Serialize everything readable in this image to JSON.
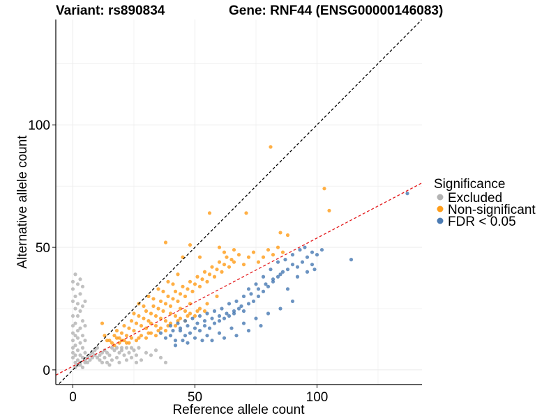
{
  "chart_data": {
    "type": "scatter",
    "title_left": "Variant: rs890834",
    "title_right": "Gene: RNF44 (ENSG00000146083)",
    "xlabel": "Reference allele count",
    "ylabel": "Alternative allele count",
    "xlim": [
      -7,
      143
    ],
    "ylim": [
      -6,
      143
    ],
    "xticks": [
      0,
      50,
      100
    ],
    "yticks": [
      0,
      50,
      100
    ],
    "xtick_labels": [
      "0",
      "50",
      "100"
    ],
    "ytick_labels": [
      "0",
      "50",
      "100"
    ],
    "grid": true,
    "legend_title": "Significance",
    "legend_position": "right",
    "reference_line": {
      "slope": 1,
      "intercept": 0,
      "style": "dashed",
      "color": "#000000"
    },
    "fit_line": {
      "slope": 0.523,
      "intercept": 1.5,
      "style": "dashed",
      "color": "#e41a1c"
    },
    "series": [
      {
        "name": "Excluded",
        "color": "#b3b3b3",
        "points": [
          [
            0,
            5
          ],
          [
            0,
            7
          ],
          [
            0,
            9
          ],
          [
            0,
            12
          ],
          [
            0,
            15
          ],
          [
            0,
            18
          ],
          [
            0,
            22
          ],
          [
            0,
            28
          ],
          [
            0,
            33
          ],
          [
            0,
            36
          ],
          [
            1,
            3
          ],
          [
            1,
            6
          ],
          [
            1,
            10
          ],
          [
            1,
            14
          ],
          [
            1,
            19
          ],
          [
            1,
            25
          ],
          [
            1,
            30
          ],
          [
            1,
            39
          ],
          [
            2,
            4
          ],
          [
            2,
            8
          ],
          [
            2,
            13
          ],
          [
            2,
            16
          ],
          [
            2,
            22
          ],
          [
            2,
            27
          ],
          [
            2,
            35
          ],
          [
            3,
            2
          ],
          [
            3,
            6
          ],
          [
            3,
            11
          ],
          [
            3,
            17
          ],
          [
            3,
            24
          ],
          [
            3,
            31
          ],
          [
            3,
            37
          ],
          [
            4,
            5
          ],
          [
            4,
            9
          ],
          [
            4,
            14
          ],
          [
            4,
            20
          ],
          [
            4,
            26
          ],
          [
            4,
            34
          ],
          [
            5,
            3
          ],
          [
            5,
            7
          ],
          [
            5,
            12
          ],
          [
            5,
            18
          ],
          [
            5,
            28
          ],
          [
            1,
            1
          ],
          [
            2,
            2
          ],
          [
            3,
            3
          ],
          [
            4,
            1
          ],
          [
            5,
            4
          ],
          [
            6,
            5
          ],
          [
            7,
            6
          ],
          [
            8,
            7
          ],
          [
            6,
            3
          ],
          [
            7,
            4
          ],
          [
            8,
            5
          ],
          [
            9,
            6
          ],
          [
            10,
            5
          ],
          [
            11,
            6
          ],
          [
            12,
            7
          ],
          [
            9,
            8
          ],
          [
            10,
            9
          ],
          [
            11,
            4
          ],
          [
            12,
            3
          ],
          [
            13,
            8
          ],
          [
            14,
            7
          ],
          [
            15,
            6
          ],
          [
            16,
            9
          ],
          [
            17,
            8
          ],
          [
            18,
            5
          ],
          [
            19,
            7
          ],
          [
            20,
            8
          ],
          [
            21,
            6
          ],
          [
            22,
            9
          ],
          [
            23,
            7
          ],
          [
            24,
            5
          ],
          [
            25,
            8
          ],
          [
            26,
            6
          ],
          [
            27,
            9
          ],
          [
            28,
            4
          ],
          [
            30,
            7
          ],
          [
            32,
            6
          ],
          [
            34,
            8
          ],
          [
            36,
            5
          ],
          [
            38,
            3
          ],
          [
            18,
            9
          ],
          [
            20,
            9
          ],
          [
            24,
            9
          ],
          [
            14,
            3
          ],
          [
            16,
            4
          ],
          [
            13,
            5
          ],
          [
            15,
            2
          ],
          [
            19,
            3
          ],
          [
            22,
            4
          ],
          [
            26,
            3
          ]
        ]
      },
      {
        "name": "Non-significant",
        "color": "#ff9e1b",
        "points": [
          [
            12,
            19
          ],
          [
            15,
            12
          ],
          [
            17,
            14
          ],
          [
            18,
            16
          ],
          [
            19,
            13
          ],
          [
            20,
            15
          ],
          [
            21,
            18
          ],
          [
            22,
            14
          ],
          [
            23,
            17
          ],
          [
            24,
            20
          ],
          [
            25,
            16
          ],
          [
            26,
            19
          ],
          [
            27,
            22
          ],
          [
            28,
            18
          ],
          [
            29,
            21
          ],
          [
            30,
            24
          ],
          [
            31,
            20
          ],
          [
            32,
            23
          ],
          [
            33,
            26
          ],
          [
            34,
            22
          ],
          [
            35,
            25
          ],
          [
            36,
            28
          ],
          [
            37,
            24
          ],
          [
            38,
            27
          ],
          [
            39,
            30
          ],
          [
            40,
            26
          ],
          [
            41,
            29
          ],
          [
            42,
            32
          ],
          [
            43,
            28
          ],
          [
            44,
            31
          ],
          [
            45,
            34
          ],
          [
            46,
            30
          ],
          [
            47,
            33
          ],
          [
            48,
            36
          ],
          [
            49,
            32
          ],
          [
            50,
            35
          ],
          [
            51,
            38
          ],
          [
            52,
            34
          ],
          [
            53,
            37
          ],
          [
            54,
            40
          ],
          [
            55,
            36
          ],
          [
            56,
            39
          ],
          [
            57,
            42
          ],
          [
            58,
            38
          ],
          [
            59,
            41
          ],
          [
            60,
            44
          ],
          [
            61,
            40
          ],
          [
            62,
            43
          ],
          [
            63,
            46
          ],
          [
            64,
            42
          ],
          [
            65,
            45
          ],
          [
            66,
            44
          ],
          [
            68,
            47
          ],
          [
            70,
            43
          ],
          [
            72,
            46
          ],
          [
            74,
            48
          ],
          [
            76,
            44
          ],
          [
            78,
            46
          ],
          [
            80,
            49
          ],
          [
            82,
            47
          ],
          [
            84,
            50
          ],
          [
            86,
            48
          ],
          [
            20,
            12
          ],
          [
            22,
            11
          ],
          [
            24,
            13
          ],
          [
            26,
            12
          ],
          [
            28,
            14
          ],
          [
            30,
            13
          ],
          [
            32,
            15
          ],
          [
            34,
            14
          ],
          [
            36,
            17
          ],
          [
            38,
            16
          ],
          [
            40,
            19
          ],
          [
            42,
            18
          ],
          [
            44,
            21
          ],
          [
            46,
            20
          ],
          [
            48,
            23
          ],
          [
            50,
            22
          ],
          [
            52,
            25
          ],
          [
            54,
            24
          ],
          [
            25,
            23
          ],
          [
            27,
            27
          ],
          [
            29,
            26
          ],
          [
            31,
            30
          ],
          [
            33,
            29
          ],
          [
            35,
            33
          ],
          [
            37,
            32
          ],
          [
            39,
            36
          ],
          [
            41,
            35
          ],
          [
            43,
            39
          ],
          [
            30,
            17
          ],
          [
            32,
            19
          ],
          [
            34,
            18
          ],
          [
            36,
            21
          ],
          [
            38,
            20
          ],
          [
            40,
            23
          ],
          [
            42,
            22
          ],
          [
            44,
            25
          ],
          [
            46,
            24
          ],
          [
            48,
            27
          ],
          [
            23,
            11
          ],
          [
            27,
            13
          ],
          [
            31,
            15
          ],
          [
            35,
            16
          ],
          [
            39,
            18
          ],
          [
            43,
            20
          ],
          [
            47,
            22
          ],
          [
            51,
            24
          ],
          [
            55,
            27
          ],
          [
            59,
            30
          ],
          [
            17,
            10
          ],
          [
            19,
            11
          ],
          [
            21,
            12
          ],
          [
            18,
            13
          ],
          [
            16,
            11
          ],
          [
            14,
            12
          ],
          [
            13,
            14
          ],
          [
            38,
            52
          ],
          [
            48,
            51
          ],
          [
            56,
            64
          ],
          [
            71,
            64
          ],
          [
            81,
            91
          ],
          [
            85,
            56
          ],
          [
            88,
            55
          ],
          [
            103,
            74
          ],
          [
            105,
            65
          ],
          [
            60,
            50
          ],
          [
            62,
            48
          ],
          [
            45,
            46
          ],
          [
            52,
            46
          ],
          [
            66,
            49
          ]
        ]
      },
      {
        "name": "FDR < 0.05",
        "color": "#4b7bb3",
        "points": [
          [
            36,
            15
          ],
          [
            38,
            13
          ],
          [
            40,
            14
          ],
          [
            42,
            12
          ],
          [
            44,
            16
          ],
          [
            46,
            14
          ],
          [
            48,
            15
          ],
          [
            50,
            17
          ],
          [
            52,
            16
          ],
          [
            54,
            18
          ],
          [
            56,
            17
          ],
          [
            58,
            19
          ],
          [
            60,
            20
          ],
          [
            62,
            21
          ],
          [
            64,
            22
          ],
          [
            66,
            23
          ],
          [
            68,
            25
          ],
          [
            70,
            24
          ],
          [
            72,
            27
          ],
          [
            74,
            28
          ],
          [
            76,
            30
          ],
          [
            78,
            32
          ],
          [
            80,
            34
          ],
          [
            82,
            36
          ],
          [
            84,
            38
          ],
          [
            86,
            40
          ],
          [
            88,
            41
          ],
          [
            90,
            43
          ],
          [
            92,
            42
          ],
          [
            94,
            44
          ],
          [
            96,
            46
          ],
          [
            98,
            48
          ],
          [
            100,
            47
          ],
          [
            102,
            49
          ],
          [
            40,
            18
          ],
          [
            43,
            19
          ],
          [
            46,
            20
          ],
          [
            49,
            21
          ],
          [
            52,
            22
          ],
          [
            55,
            23
          ],
          [
            58,
            24
          ],
          [
            61,
            25
          ],
          [
            64,
            27
          ],
          [
            67,
            28
          ],
          [
            70,
            30
          ],
          [
            73,
            31
          ],
          [
            76,
            33
          ],
          [
            79,
            35
          ],
          [
            82,
            37
          ],
          [
            85,
            39
          ],
          [
            45,
            12
          ],
          [
            50,
            13
          ],
          [
            55,
            14
          ],
          [
            60,
            15
          ],
          [
            65,
            17
          ],
          [
            70,
            19
          ],
          [
            75,
            21
          ],
          [
            80,
            23
          ],
          [
            85,
            25
          ],
          [
            90,
            28
          ],
          [
            42,
            10
          ],
          [
            47,
            11
          ],
          [
            53,
            12
          ],
          [
            57,
            12
          ],
          [
            62,
            13
          ],
          [
            67,
            14
          ],
          [
            72,
            16
          ],
          [
            77,
            18
          ],
          [
            41,
            16
          ],
          [
            44,
            17
          ],
          [
            47,
            18
          ],
          [
            51,
            19
          ],
          [
            54,
            20
          ],
          [
            57,
            21
          ],
          [
            60,
            22
          ],
          [
            63,
            23
          ],
          [
            66,
            24
          ],
          [
            69,
            26
          ],
          [
            72,
            33
          ],
          [
            75,
            35
          ],
          [
            78,
            38
          ],
          [
            81,
            41
          ],
          [
            84,
            44
          ],
          [
            87,
            45
          ],
          [
            90,
            47
          ],
          [
            93,
            49
          ],
          [
            98,
            43
          ],
          [
            99,
            41
          ],
          [
            95,
            50
          ],
          [
            114,
            45
          ],
          [
            137,
            72
          ],
          [
            88,
            33
          ],
          [
            92,
            38
          ],
          [
            96,
            40
          ]
        ]
      }
    ]
  }
}
